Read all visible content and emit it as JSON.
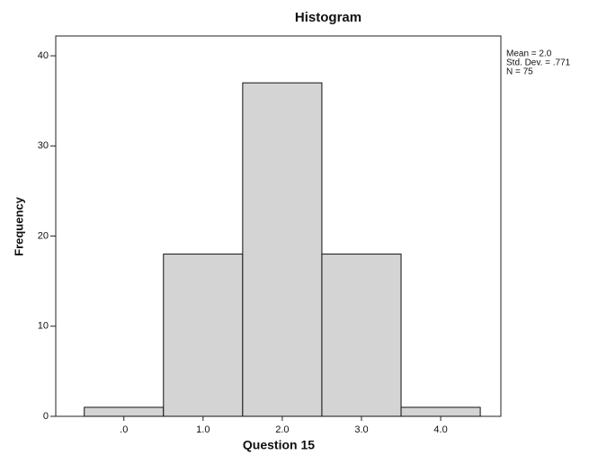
{
  "chart_data": {
    "type": "histogram",
    "title": "Histogram",
    "x_label": "Question 15",
    "y_label": "Frequency",
    "bins": [
      -0.5,
      0.5,
      1.5,
      2.5,
      3.5,
      4.5
    ],
    "counts": [
      1,
      18,
      37,
      18,
      1
    ],
    "color": "#d4d4d4",
    "xlim": [
      -0.86,
      4.76
    ],
    "xticks": [
      {
        "value": 0,
        "label": ".0"
      },
      {
        "value": 1,
        "label": "1.0"
      },
      {
        "value": 2,
        "label": "2.0"
      },
      {
        "value": 3,
        "label": "3.0"
      },
      {
        "value": 4,
        "label": "4.0"
      }
    ],
    "ylim": [
      0,
      42.2
    ],
    "yticks": [
      0,
      10,
      20,
      30,
      40
    ],
    "annotations": [
      "Mean = 2.0",
      "Std. Dev. = .771",
      "N = 75"
    ]
  }
}
